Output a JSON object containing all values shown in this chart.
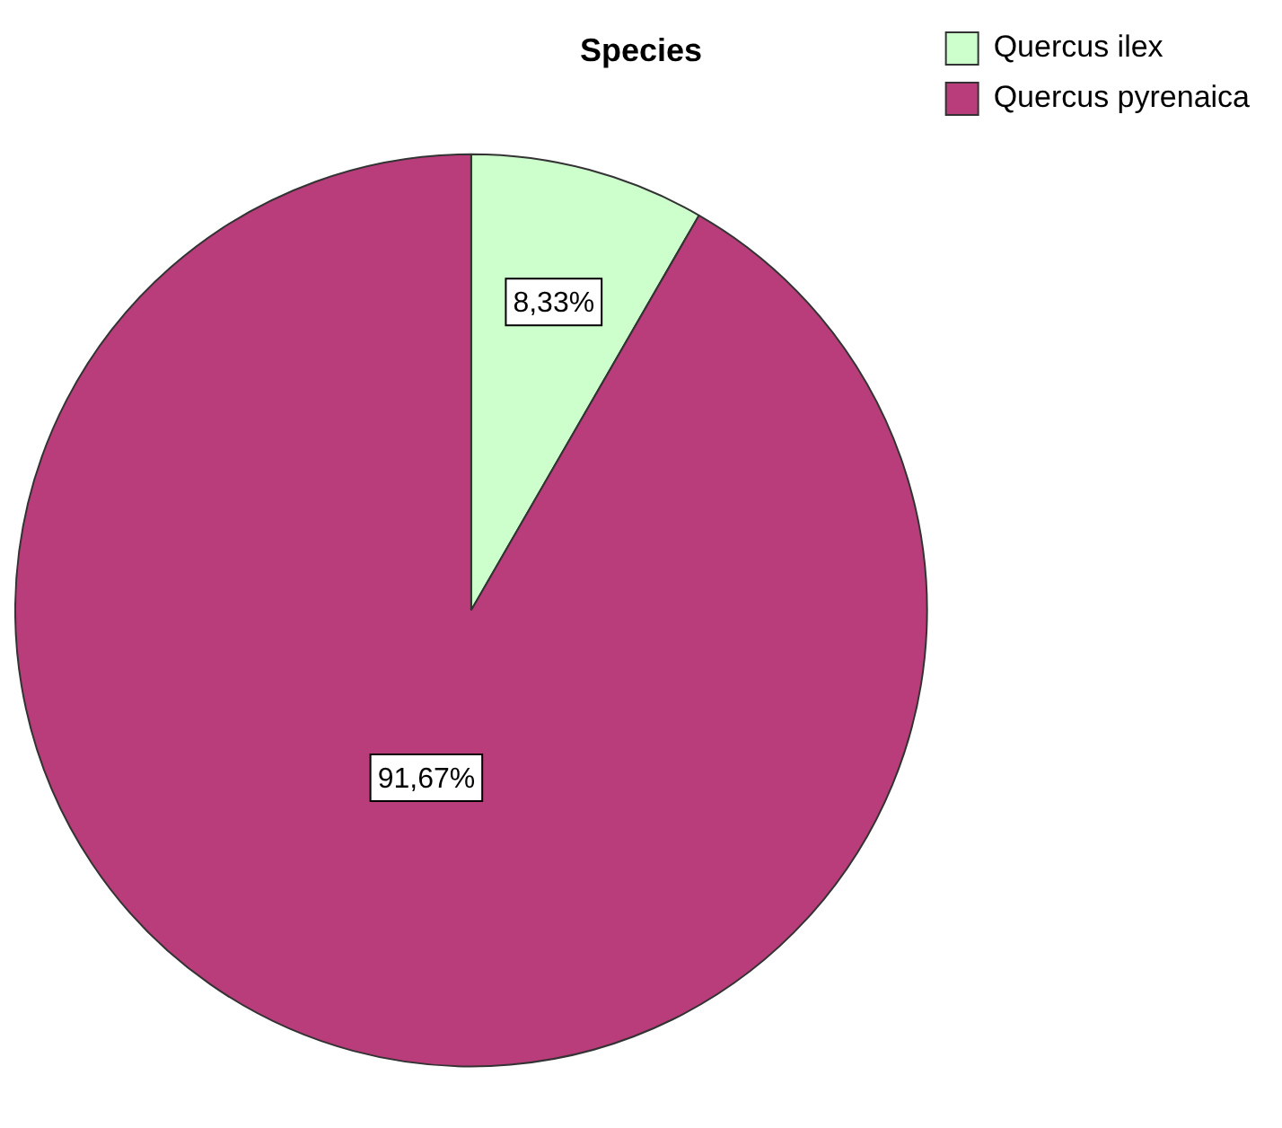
{
  "chart_data": {
    "type": "pie",
    "title": "Species",
    "categories": [
      "Quercus ilex",
      "Quercus pyrenaica"
    ],
    "values": [
      8.33,
      91.67
    ],
    "colors": [
      "#ccffcc",
      "#b83d7a"
    ],
    "value_labels": [
      "8,33%",
      "91,67%"
    ],
    "legend": "top right"
  }
}
